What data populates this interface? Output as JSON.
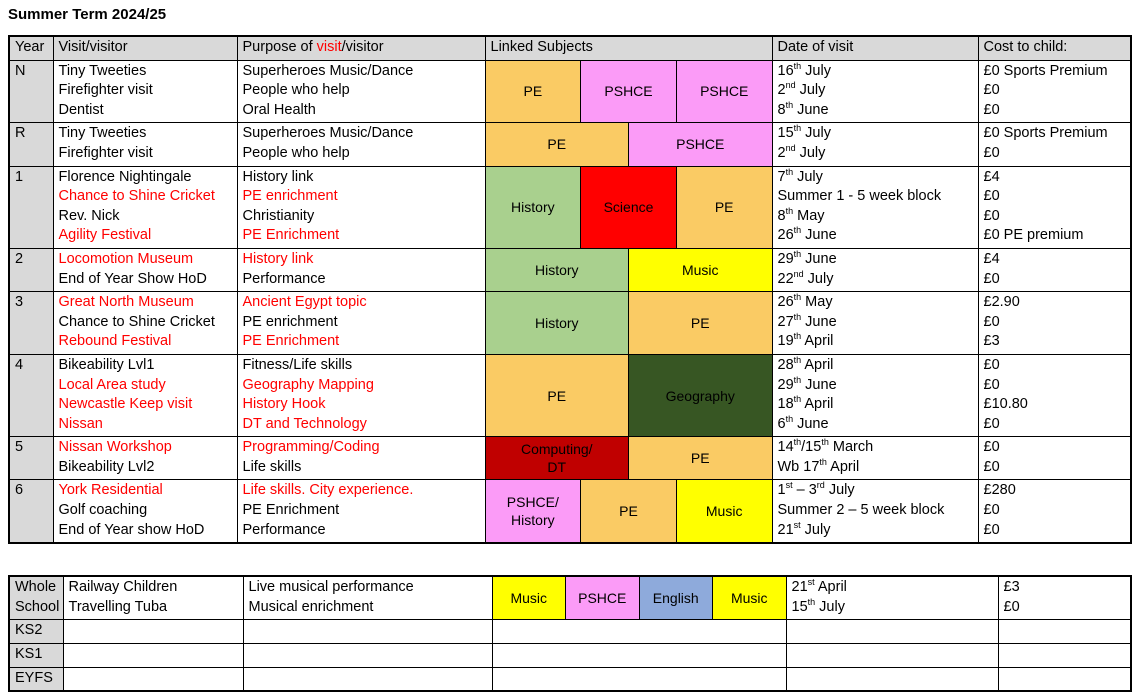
{
  "title": "Summer Term 2024/25",
  "palette": {
    "header_bg": "#D9D9D9",
    "red_text": "#FF0000",
    "subject_colors": {
      "gold": "#FACB64",
      "pink": "#FB9BF7",
      "ltgreen": "#A9D08E",
      "red": "#FF0000",
      "dkgreen": "#375623",
      "dkred": "#C00000",
      "yellow": "#FFFF00",
      "blue": "#8EAADB"
    }
  },
  "main_table": {
    "headers": {
      "year": "Year",
      "visit": "Visit/visitor",
      "purpose_pre": "Purpose of ",
      "purpose_red": "visit",
      "purpose_post": "/visitor",
      "subjects": "Linked Subjects",
      "date": "Date of visit",
      "cost": "Cost to child:"
    },
    "rows": [
      {
        "label": "N",
        "visits": [
          {
            "t": "Tiny Tweeties",
            "red": false
          },
          {
            "t": "Firefighter visit",
            "red": false
          },
          {
            "t": "Dentist",
            "red": false
          }
        ],
        "purposes": [
          {
            "t": "Superheroes Music/Dance",
            "red": false
          },
          {
            "t": "People who help",
            "red": false
          },
          {
            "t": "Oral Health",
            "red": false
          }
        ],
        "subjects": [
          {
            "label": "PE",
            "color": "gold"
          },
          {
            "label": "PSHCE",
            "color": "pink"
          },
          {
            "label": "PSHCE",
            "color": "pink"
          }
        ],
        "dates": [
          "16th July",
          "2nd July",
          "8th June"
        ],
        "costs": [
          "£0 Sports Premium",
          "£0",
          "£0"
        ]
      },
      {
        "label": "R",
        "visits": [
          {
            "t": "Tiny Tweeties",
            "red": false
          },
          {
            "t": "Firefighter visit",
            "red": false
          }
        ],
        "purposes": [
          {
            "t": "Superheroes Music/Dance",
            "red": false
          },
          {
            "t": "People who help",
            "red": false
          }
        ],
        "subjects": [
          {
            "label": "PE",
            "color": "gold"
          },
          {
            "label": "PSHCE",
            "color": "pink"
          }
        ],
        "dates": [
          "15th July",
          "2nd July"
        ],
        "costs": [
          "£0 Sports Premium",
          "£0"
        ]
      },
      {
        "label": "1",
        "visits": [
          {
            "t": "Florence Nightingale",
            "red": false
          },
          {
            "t": "Chance to Shine Cricket",
            "red": true
          },
          {
            "t": "Rev. Nick",
            "red": false
          },
          {
            "t": "Agility Festival",
            "red": true
          }
        ],
        "purposes": [
          {
            "t": "History link",
            "red": false
          },
          {
            "t": "PE enrichment",
            "red": true
          },
          {
            "t": "Christianity",
            "red": false
          },
          {
            "t": "PE Enrichment",
            "red": true
          }
        ],
        "subjects": [
          {
            "label": "History",
            "color": "ltgreen"
          },
          {
            "label": "Science",
            "color": "red"
          },
          {
            "label": "PE",
            "color": "gold"
          }
        ],
        "dates": [
          "7th July",
          "Summer 1 - 5 week block",
          "8th May",
          "26th June"
        ],
        "costs": [
          "£4",
          "£0",
          "£0",
          "£0 PE premium"
        ]
      },
      {
        "label": "2",
        "visits": [
          {
            "t": "Locomotion Museum",
            "red": true
          },
          {
            "t": "End of Year Show HoD",
            "red": false
          }
        ],
        "purposes": [
          {
            "t": "History link",
            "red": true
          },
          {
            "t": "Performance",
            "red": false
          }
        ],
        "subjects": [
          {
            "label": "History",
            "color": "ltgreen"
          },
          {
            "label": "Music",
            "color": "yellow"
          }
        ],
        "dates": [
          "29th June",
          "22nd July"
        ],
        "costs": [
          "£4",
          "£0"
        ]
      },
      {
        "label": "3",
        "visits": [
          {
            "t": "Great North Museum",
            "red": true
          },
          {
            "t": "Chance to Shine Cricket",
            "red": false
          },
          {
            "t": "Rebound Festival",
            "red": true
          }
        ],
        "purposes": [
          {
            "t": "Ancient Egypt topic",
            "red": true
          },
          {
            "t": "PE enrichment",
            "red": false
          },
          {
            "t": "PE Enrichment",
            "red": true
          }
        ],
        "subjects": [
          {
            "label": "History",
            "color": "ltgreen"
          },
          {
            "label": "PE",
            "color": "gold"
          }
        ],
        "dates": [
          "26th May",
          "27th June",
          "19th April"
        ],
        "costs": [
          "£2.90",
          "£0",
          "£3"
        ]
      },
      {
        "label": "4",
        "visits": [
          {
            "t": "Bikeability Lvl1",
            "red": false
          },
          {
            "t": "Local Area study",
            "red": true
          },
          {
            "t": "Newcastle Keep visit",
            "red": true
          },
          {
            "t": "Nissan",
            "red": true
          }
        ],
        "purposes": [
          {
            "t": "Fitness/Life skills",
            "red": false
          },
          {
            "t": "Geography Mapping",
            "red": true
          },
          {
            "t": "History Hook",
            "red": true
          },
          {
            "t": "DT and Technology",
            "red": true
          }
        ],
        "subjects": [
          {
            "label": "PE",
            "color": "gold"
          },
          {
            "label": "Geography",
            "color": "dkgreen"
          }
        ],
        "dates": [
          "28th April",
          "29th June",
          "18th April",
          "6th June"
        ],
        "costs": [
          "£0",
          "£0",
          "£10.80",
          "£0"
        ]
      },
      {
        "label": "5",
        "visits": [
          {
            "t": "Nissan Workshop",
            "red": true
          },
          {
            "t": "Bikeability Lvl2",
            "red": false
          }
        ],
        "purposes": [
          {
            "t": "Programming/Coding",
            "red": true
          },
          {
            "t": "Life skills",
            "red": false
          }
        ],
        "subjects": [
          {
            "label": "Computing/\nDT",
            "color": "dkred"
          },
          {
            "label": "PE",
            "color": "gold"
          }
        ],
        "dates": [
          "14th/15th March",
          "Wb 17th April"
        ],
        "costs": [
          "£0",
          "£0"
        ]
      },
      {
        "label": "6",
        "visits": [
          {
            "t": "York Residential",
            "red": true
          },
          {
            "t": "Golf coaching",
            "red": false
          },
          {
            "t": "End of Year show HoD",
            "red": false
          }
        ],
        "purposes": [
          {
            "t": "Life skills. City experience.",
            "red": true
          },
          {
            "t": "PE Enrichment",
            "red": false
          },
          {
            "t": "Performance",
            "red": false
          }
        ],
        "subjects": [
          {
            "label": "PSHCE/\nHistory",
            "color": "pink"
          },
          {
            "label": "PE",
            "color": "gold"
          },
          {
            "label": "Music",
            "color": "yellow"
          }
        ],
        "dates": [
          "1st – 3rd July",
          "Summer 2 – 5 week block",
          "21st July"
        ],
        "costs": [
          "£280",
          "£0",
          "£0"
        ]
      }
    ]
  },
  "bottom_table": {
    "rows": [
      {
        "label": "Whole School",
        "visits": [
          {
            "t": "Railway Children",
            "red": false
          },
          {
            "t": "Travelling Tuba",
            "red": false
          }
        ],
        "purposes": [
          {
            "t": "Live musical performance",
            "red": false
          },
          {
            "t": "Musical enrichment",
            "red": false
          }
        ],
        "subjects": [
          {
            "label": "Music",
            "color": "yellow"
          },
          {
            "label": "PSHCE",
            "color": "pink"
          },
          {
            "label": "English",
            "color": "blue"
          },
          {
            "label": "Music",
            "color": "yellow"
          }
        ],
        "dates": [
          "21st April",
          "15th July"
        ],
        "costs": [
          "£3",
          "£0"
        ]
      },
      {
        "label": "KS2",
        "visits": [],
        "purposes": [],
        "subjects": [],
        "dates": [],
        "costs": []
      },
      {
        "label": "KS1",
        "visits": [],
        "purposes": [],
        "subjects": [],
        "dates": [],
        "costs": []
      },
      {
        "label": "EYFS",
        "visits": [],
        "purposes": [],
        "subjects": [],
        "dates": [],
        "costs": []
      }
    ]
  }
}
